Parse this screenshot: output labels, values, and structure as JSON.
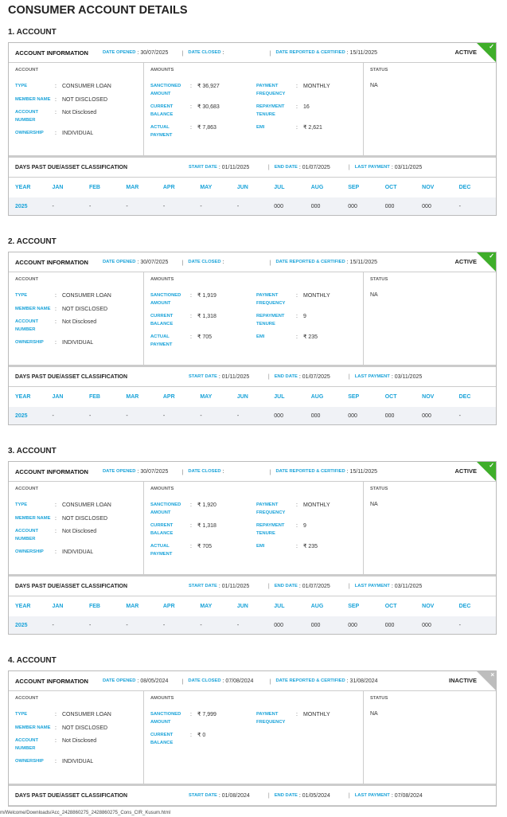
{
  "page_title": "CONSUMER ACCOUNT DETAILS",
  "labels": {
    "account_information": "ACCOUNT INFORMATION",
    "date_opened": "DATE OPENED",
    "date_closed": "DATE CLOSED",
    "date_reported": "DATE REPORTED & CERTIFIED",
    "account": "ACCOUNT",
    "amounts": "AMOUNTS",
    "status": "STATUS",
    "type": "TYPE",
    "member_name": "MEMBER NAME",
    "account_number": "ACCOUNT NUMBER",
    "ownership": "OWNERSHIP",
    "sanctioned_amount": "SANCTIONED AMOUNT",
    "current_balance": "CURRENT BALANCE",
    "actual_payment": "ACTUAL PAYMENT",
    "payment_frequency": "PAYMENT FREQUENCY",
    "repayment_tenure": "REPAYMENT TENURE",
    "emi": "EMI",
    "dpd": "DAYS PAST DUE/ASSET CLASSIFICATION",
    "start_date": "START DATE",
    "end_date": "END DATE",
    "last_payment": "LAST PAYMENT",
    "colon": ":",
    "sep": "|"
  },
  "months_header": [
    "YEAR",
    "JAN",
    "FEB",
    "MAR",
    "APR",
    "MAY",
    "JUN",
    "JUL",
    "AUG",
    "SEP",
    "OCT",
    "NOV",
    "DEC"
  ],
  "accounts": [
    {
      "title": "1. ACCOUNT",
      "status": "ACTIVE",
      "status_icon": "check",
      "date_opened": ": 30/07/2025",
      "date_closed": ":",
      "date_reported": ": 15/11/2025",
      "type": "CONSUMER LOAN",
      "member_name": "NOT DISCLOSED",
      "account_number": "Not Disclosed",
      "ownership": "INDIVIDUAL",
      "sanctioned_amount": "₹ 36,927",
      "current_balance": "₹ 30,683",
      "actual_payment": "₹ 7,863",
      "payment_frequency": "MONTHLY",
      "repayment_tenure": "16",
      "emi": "₹ 2,621",
      "status_value": "NA",
      "start_date": ": 01/11/2025",
      "end_date": ": 01/07/2025",
      "last_payment": ": 03/11/2025",
      "dpd_row": [
        "2025",
        "-",
        "-",
        "-",
        "-",
        "-",
        "-",
        "000",
        "000",
        "000",
        "000",
        "000",
        "-"
      ]
    },
    {
      "title": "2. ACCOUNT",
      "status": "ACTIVE",
      "status_icon": "check",
      "date_opened": ": 30/07/2025",
      "date_closed": ":",
      "date_reported": ": 15/11/2025",
      "type": "CONSUMER LOAN",
      "member_name": "NOT DISCLOSED",
      "account_number": "Not Disclosed",
      "ownership": "INDIVIDUAL",
      "sanctioned_amount": "₹ 1,919",
      "current_balance": "₹ 1,318",
      "actual_payment": "₹ 705",
      "payment_frequency": "MONTHLY",
      "repayment_tenure": "9",
      "emi": "₹ 235",
      "status_value": "NA",
      "start_date": ": 01/11/2025",
      "end_date": ": 01/07/2025",
      "last_payment": ": 03/11/2025",
      "dpd_row": [
        "2025",
        "-",
        "-",
        "-",
        "-",
        "-",
        "-",
        "000",
        "000",
        "000",
        "000",
        "000",
        "-"
      ]
    },
    {
      "title": "3. ACCOUNT",
      "status": "ACTIVE",
      "status_icon": "check",
      "date_opened": ": 30/07/2025",
      "date_closed": ":",
      "date_reported": ": 15/11/2025",
      "type": "CONSUMER LOAN",
      "member_name": "NOT DISCLOSED",
      "account_number": "Not Disclosed",
      "ownership": "INDIVIDUAL",
      "sanctioned_amount": "₹ 1,920",
      "current_balance": "₹ 1,318",
      "actual_payment": "₹ 705",
      "payment_frequency": "MONTHLY",
      "repayment_tenure": "9",
      "emi": "₹ 235",
      "status_value": "NA",
      "start_date": ": 01/11/2025",
      "end_date": ": 01/07/2025",
      "last_payment": ": 03/11/2025",
      "dpd_row": [
        "2025",
        "-",
        "-",
        "-",
        "-",
        "-",
        "-",
        "000",
        "000",
        "000",
        "000",
        "000",
        "-"
      ]
    },
    {
      "title": "4. ACCOUNT",
      "status": "INACTIVE",
      "status_icon": "close",
      "date_opened": ": 08/05/2024",
      "date_closed": ": 07/08/2024",
      "date_reported": ": 31/08/2024",
      "type": "CONSUMER LOAN",
      "member_name": "NOT DISCLOSED",
      "account_number": "Not Disclosed",
      "ownership": "INDIVIDUAL",
      "sanctioned_amount": "₹ 7,999",
      "current_balance": "₹ 0",
      "payment_frequency": "MONTHLY",
      "status_value": "NA",
      "start_date": ": 01/08/2024",
      "end_date": ": 01/05/2024",
      "last_payment": ": 07/08/2024"
    }
  ],
  "footer": "m/Welcome/Downloads/Acc_2428860275_2428860275_Cons_CIR_Kusum.html"
}
